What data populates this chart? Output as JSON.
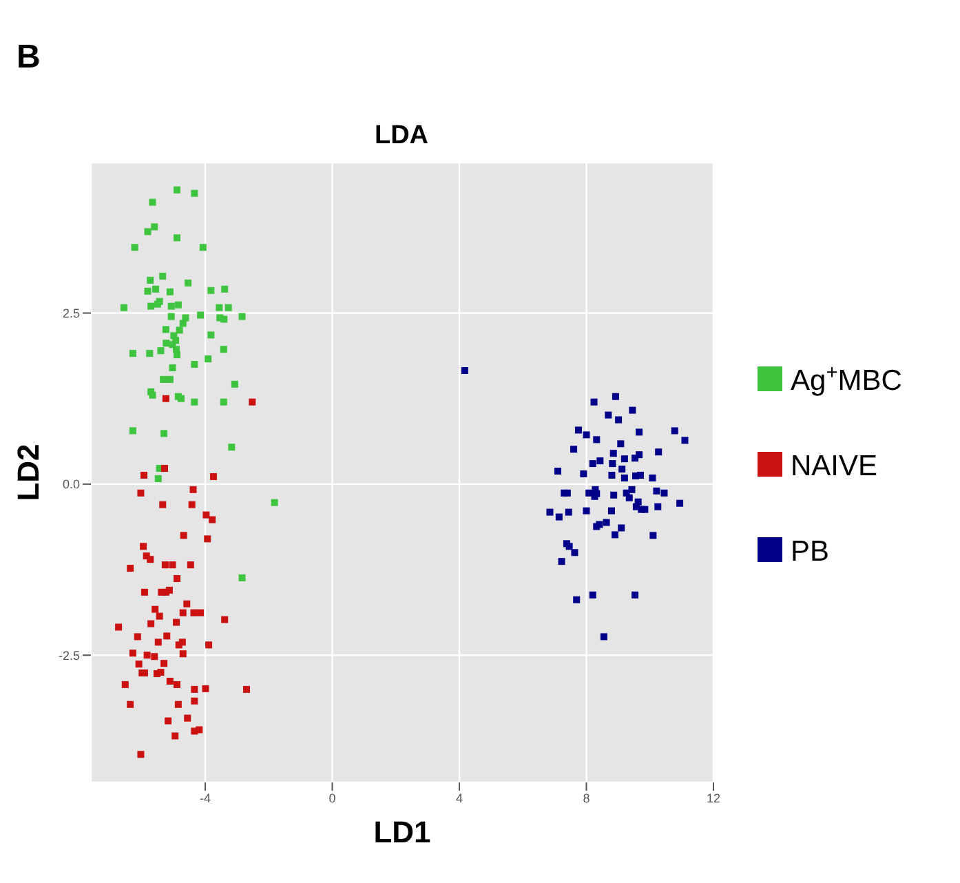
{
  "chart_data": {
    "type": "scatter",
    "title": "LDA",
    "xlabel": "LD1",
    "ylabel": "LD2",
    "annotations": [
      "B"
    ],
    "xlim": [
      -7.6,
      12
    ],
    "ylim": [
      -4.36,
      4.7
    ],
    "xticks": [
      -4,
      0,
      4,
      8,
      12
    ],
    "yticks": [
      {
        "value": -2.5,
        "label": "-2.5"
      },
      {
        "value": 0,
        "label": "0.0"
      },
      {
        "value": 2.5,
        "label": "2.5"
      }
    ],
    "grid": true,
    "legend": "right",
    "marker": "square",
    "series": [
      {
        "name": "Ag$^{+}$MBC",
        "color": "#3ec43e",
        "x": [
          -4.89,
          -4.34,
          -5.66,
          -5.81,
          -5.6,
          -6.22,
          -4.89,
          -4.07,
          -5.73,
          -5.34,
          -4.54,
          -5.81,
          -5.56,
          -5.11,
          -3.82,
          -3.39,
          -6.56,
          -5.71,
          -5.5,
          -5.44,
          -5.07,
          -4.85,
          -3.56,
          -3.27,
          -4.15,
          -4.62,
          -5.07,
          -3.54,
          -3.41,
          -2.84,
          -4.7,
          -5.24,
          -4.81,
          -3.82,
          -4.99,
          -4.93,
          -5.23,
          -5.03,
          -4.91,
          -5.4,
          -5.75,
          -6.28,
          -4.89,
          -3.91,
          -3.42,
          -4.34,
          -5.03,
          -5.32,
          -5.11,
          -3.07,
          -5.71,
          -5.66,
          -4.85,
          -4.76,
          -4.34,
          -3.42,
          -6.28,
          -5.3,
          -3.17,
          -5.44,
          -5.48,
          -1.82,
          -2.84
        ],
        "values": [
          4.3,
          4.25,
          4.12,
          3.69,
          3.76,
          3.46,
          3.6,
          3.46,
          2.98,
          3.04,
          2.94,
          2.82,
          2.85,
          2.81,
          2.83,
          2.85,
          2.58,
          2.6,
          2.63,
          2.67,
          2.6,
          2.62,
          2.58,
          2.58,
          2.47,
          2.43,
          2.45,
          2.43,
          2.41,
          2.45,
          2.35,
          2.26,
          2.25,
          2.18,
          2.17,
          2.1,
          2.06,
          2.04,
          1.97,
          1.95,
          1.91,
          1.91,
          1.89,
          1.83,
          1.97,
          1.75,
          1.7,
          1.53,
          1.53,
          1.46,
          1.35,
          1.3,
          1.28,
          1.25,
          1.2,
          1.2,
          0.78,
          0.74,
          0.54,
          0.23,
          0.08,
          -0.27,
          -1.37
        ]
      },
      {
        "name": "NAIVE",
        "color": "#cc1111",
        "x": [
          -2.52,
          -5.24,
          -5.93,
          -5.28,
          -3.74,
          -6.03,
          -4.38,
          -5.34,
          -4.42,
          -3.97,
          -3.78,
          -4.68,
          -3.93,
          -5.95,
          -5.85,
          -5.73,
          -6.36,
          -5.26,
          -5.03,
          -4.46,
          -4.89,
          -5.38,
          -5.24,
          -5.13,
          -5.91,
          -4.58,
          -5.58,
          -4.36,
          -4.15,
          -6.73,
          -3.39,
          -5.44,
          -4.91,
          -4.7,
          -5.71,
          -5.21,
          -6.13,
          -4.72,
          -4.83,
          -5.48,
          -3.89,
          -6.28,
          -5.83,
          -5.6,
          -4.7,
          -6.09,
          -5.99,
          -5.91,
          -5.3,
          -5.52,
          -5.4,
          -5.11,
          -4.89,
          -6.52,
          -4.34,
          -3.99,
          -2.7,
          -6.36,
          -4.85,
          -4.34,
          -5.17,
          -4.56,
          -4.95,
          -4.34,
          -4.19,
          -6.03
        ],
        "values": [
          1.2,
          1.25,
          0.13,
          0.23,
          0.11,
          -0.13,
          -0.08,
          -0.3,
          -0.3,
          -0.45,
          -0.52,
          -0.75,
          -0.8,
          -0.91,
          -1.05,
          -1.1,
          -1.23,
          -1.18,
          -1.18,
          -1.18,
          -1.38,
          -1.58,
          -1.58,
          -1.55,
          -1.58,
          -1.75,
          -1.83,
          -1.88,
          -1.88,
          -2.09,
          -1.98,
          -1.93,
          -2.02,
          -1.88,
          -2.04,
          -2.22,
          -2.23,
          -2.31,
          -2.35,
          -2.31,
          -2.35,
          -2.47,
          -2.5,
          -2.52,
          -2.48,
          -2.63,
          -2.76,
          -2.76,
          -2.62,
          -2.77,
          -2.75,
          -2.88,
          -2.93,
          -2.93,
          -3.0,
          -2.99,
          -3.0,
          -3.22,
          -3.22,
          -3.17,
          -3.46,
          -3.42,
          -3.68,
          -3.61,
          -3.59,
          -3.95
        ]
      },
      {
        "name": "PB",
        "color": "#00008b",
        "x": [
          4.17,
          8.24,
          8.92,
          8.69,
          9.45,
          7.75,
          8.0,
          8.32,
          10.78,
          11.1,
          9.66,
          9.01,
          7.6,
          9.08,
          9.66,
          9.53,
          8.85,
          10.27,
          8.2,
          8.43,
          8.82,
          9.2,
          7.1,
          9.12,
          7.91,
          8.8,
          9.2,
          9.55,
          9.7,
          10.08,
          7.3,
          7.4,
          8.08,
          8.32,
          8.26,
          8.86,
          9.26,
          9.43,
          9.35,
          10.45,
          10.21,
          9.63,
          9.57,
          9.73,
          9.84,
          10.94,
          10.25,
          6.85,
          7.14,
          7.44,
          8.0,
          8.79,
          8.41,
          8.63,
          8.32,
          9.1,
          8.9,
          10.1,
          7.38,
          7.46,
          7.63,
          7.22,
          8.2,
          7.69,
          9.53,
          8.55,
          8.28
        ],
        "values": [
          1.66,
          1.2,
          1.28,
          1.01,
          1.08,
          0.79,
          0.72,
          0.65,
          0.78,
          0.64,
          0.76,
          0.94,
          0.51,
          0.59,
          0.43,
          0.38,
          0.45,
          0.47,
          0.3,
          0.34,
          0.3,
          0.37,
          0.19,
          0.22,
          0.15,
          0.13,
          0.09,
          0.12,
          0.13,
          0.09,
          -0.13,
          -0.13,
          -0.13,
          -0.14,
          -0.18,
          -0.16,
          -0.13,
          -0.08,
          -0.2,
          -0.13,
          -0.1,
          -0.26,
          -0.33,
          -0.37,
          -0.37,
          -0.28,
          -0.33,
          -0.41,
          -0.48,
          -0.41,
          -0.39,
          -0.39,
          -0.59,
          -0.56,
          -0.62,
          -0.64,
          -0.74,
          -0.75,
          -0.87,
          -0.91,
          -1.0,
          -1.13,
          -1.62,
          -1.69,
          -1.62,
          -2.23,
          -0.08
        ]
      }
    ]
  }
}
